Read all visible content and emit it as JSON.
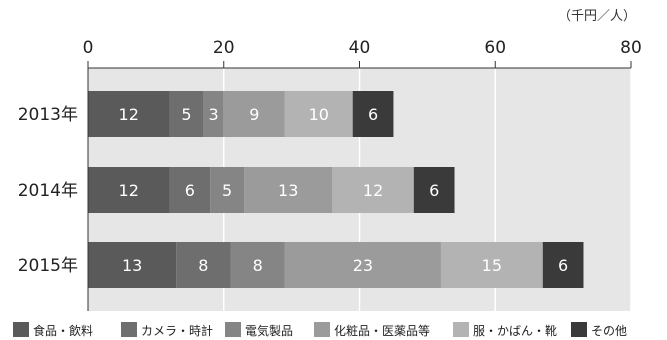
{
  "chart_data": {
    "type": "bar",
    "orientation": "horizontal",
    "stacked": true,
    "unit": "（千円／人）",
    "categories": [
      "2013年",
      "2014年",
      "2015年"
    ],
    "xlim": [
      0,
      80
    ],
    "xticks": [
      0,
      20,
      40,
      60,
      80
    ],
    "series": [
      {
        "name": "食品・飲料",
        "color": "#5a5a5a",
        "values": [
          12,
          12,
          13
        ]
      },
      {
        "name": "カメラ・時計",
        "color": "#6e6e6e",
        "values": [
          5,
          6,
          8
        ]
      },
      {
        "name": "電気製品",
        "color": "#858585",
        "values": [
          3,
          5,
          8
        ]
      },
      {
        "name": "化粧品・医薬品等",
        "color": "#9b9b9b",
        "values": [
          9,
          13,
          23
        ]
      },
      {
        "name": "服・かばん・靴",
        "color": "#b3b3b3",
        "values": [
          10,
          12,
          15
        ]
      },
      {
        "name": "その他",
        "color": "#3a3a3a",
        "values": [
          6,
          6,
          6
        ]
      }
    ],
    "plot_background": "#e6e6e6",
    "grid": true,
    "legend_position": "bottom"
  }
}
